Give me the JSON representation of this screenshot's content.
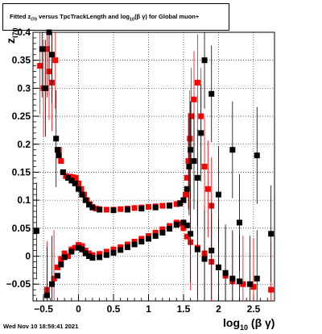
{
  "title": {
    "prefix": "Fitted  z",
    "z_subscript": "I70",
    "middle": "  versus TpcTrackLength and log",
    "log_subscript": "10",
    "suffix": "(β  γ) for Global muon+"
  },
  "timestamp": "Wed Nov 10 18:59:41 2021",
  "xlabel": {
    "main": "log",
    "sub": "10",
    "tail": "(β γ)"
  },
  "ylabel": {
    "main": "z",
    "sub": "I70"
  },
  "colors": {
    "upper_series": "#ff0000",
    "lower_series": "#000000",
    "grid": "#000000"
  },
  "chart_data": {
    "type": "scatter",
    "xlim": [
      -0.65,
      2.8
    ],
    "ylim": [
      -0.08,
      0.4
    ],
    "x_ticks": [
      -0.5,
      0,
      0.5,
      1,
      1.5,
      2,
      2.5
    ],
    "x_tick_labels": [
      "−0.5",
      "0",
      "0.5",
      "1",
      "1.5",
      "2",
      "2.5"
    ],
    "y_ticks": [
      -0.05,
      0,
      0.05,
      0.1,
      0.15,
      0.2,
      0.25,
      0.3,
      0.35,
      0.4
    ],
    "y_tick_labels": [
      "−0.05",
      "0",
      "0.05",
      "0.1",
      "0.15",
      "0.2",
      "0.25",
      "0.3",
      "0.35",
      "0.4"
    ],
    "grid": true,
    "series": [
      {
        "color": "red",
        "marker": "square",
        "points": [
          [
            -0.55,
            0.34
          ],
          [
            -0.5,
            0.3
          ],
          [
            -0.45,
            0.37
          ],
          [
            -0.42,
            0.33
          ],
          [
            -0.38,
            0.31
          ],
          [
            -0.33,
            0.35
          ],
          [
            -0.28,
            0.19
          ],
          [
            -0.25,
            0.17
          ],
          [
            -0.22,
            0.15
          ],
          [
            -0.18,
            0.143
          ],
          [
            -0.12,
            0.142
          ],
          [
            -0.08,
            0.141
          ],
          [
            -0.04,
            0.14
          ],
          [
            0.0,
            0.13
          ],
          [
            0.04,
            0.12
          ],
          [
            0.08,
            0.11
          ],
          [
            0.12,
            0.1
          ],
          [
            0.16,
            0.093
          ],
          [
            0.2,
            0.088
          ],
          [
            0.25,
            0.085
          ],
          [
            0.3,
            0.084
          ],
          [
            0.4,
            0.083
          ],
          [
            0.5,
            0.083
          ],
          [
            0.6,
            0.084
          ],
          [
            0.7,
            0.085
          ],
          [
            0.8,
            0.086
          ],
          [
            0.9,
            0.087
          ],
          [
            1.0,
            0.088
          ],
          [
            1.1,
            0.089
          ],
          [
            1.2,
            0.09
          ],
          [
            1.3,
            0.091
          ],
          [
            1.4,
            0.093
          ],
          [
            1.45,
            0.095
          ],
          [
            1.5,
            0.1
          ],
          [
            1.53,
            0.11
          ],
          [
            1.55,
            0.14
          ],
          [
            1.57,
            0.17
          ],
          [
            1.59,
            0.21
          ],
          [
            1.61,
            0.25
          ],
          [
            1.65,
            0.28
          ],
          [
            1.7,
            0.31
          ],
          [
            1.75,
            0.25
          ],
          [
            1.8,
            0.16
          ],
          [
            1.85,
            0.12
          ],
          [
            1.9,
            0.09
          ],
          [
            -0.45,
            -0.06
          ],
          [
            -0.35,
            -0.04
          ],
          [
            -0.3,
            -0.02
          ],
          [
            -0.25,
            -0.005
          ],
          [
            -0.2,
            0.005
          ],
          [
            -0.15,
            0.0
          ],
          [
            -0.1,
            0.012
          ],
          [
            -0.05,
            0.015
          ],
          [
            0.0,
            0.02
          ],
          [
            0.05,
            0.018
          ],
          [
            0.1,
            0.01
          ],
          [
            0.15,
            0.005
          ],
          [
            0.2,
            0.002
          ],
          [
            0.3,
            0.004
          ],
          [
            0.4,
            0.008
          ],
          [
            0.5,
            0.012
          ],
          [
            0.6,
            0.016
          ],
          [
            0.7,
            0.021
          ],
          [
            0.8,
            0.026
          ],
          [
            0.9,
            0.031
          ],
          [
            1.0,
            0.036
          ],
          [
            1.1,
            0.042
          ],
          [
            1.2,
            0.048
          ],
          [
            1.3,
            0.054
          ],
          [
            1.4,
            0.06
          ],
          [
            1.45,
            0.058
          ],
          [
            1.5,
            0.05
          ],
          [
            1.55,
            0.035
          ],
          [
            1.6,
            0.025
          ],
          [
            1.7,
            0.015
          ],
          [
            1.8,
            0.005
          ],
          [
            1.9,
            -0.01
          ],
          [
            2.0,
            -0.02
          ],
          [
            2.1,
            -0.035
          ],
          [
            2.2,
            -0.045
          ],
          [
            2.35,
            -0.05
          ],
          [
            2.5,
            -0.055
          ],
          [
            2.75,
            -0.06
          ]
        ]
      },
      {
        "color": "black",
        "marker": "square",
        "points": [
          [
            -0.6,
            0.045
          ],
          [
            -0.52,
            0.37
          ],
          [
            -0.47,
            0.3
          ],
          [
            -0.42,
            0.4
          ],
          [
            -0.38,
            0.36
          ],
          [
            -0.32,
            0.21
          ],
          [
            -0.3,
            0.19
          ],
          [
            -0.28,
            0.18
          ],
          [
            -0.22,
            0.15
          ],
          [
            -0.15,
            0.14
          ],
          [
            -0.1,
            0.135
          ],
          [
            -0.05,
            0.13
          ],
          [
            0.0,
            0.12
          ],
          [
            0.05,
            0.11
          ],
          [
            0.1,
            0.1
          ],
          [
            0.15,
            0.092
          ],
          [
            0.2,
            0.087
          ],
          [
            0.3,
            0.083
          ],
          [
            0.5,
            0.082
          ],
          [
            0.7,
            0.083
          ],
          [
            0.9,
            0.085
          ],
          [
            1.1,
            0.087
          ],
          [
            1.3,
            0.09
          ],
          [
            1.45,
            0.094
          ],
          [
            1.5,
            0.1
          ],
          [
            1.55,
            0.12
          ],
          [
            1.58,
            0.16
          ],
          [
            1.6,
            0.19
          ],
          [
            1.65,
            0.17
          ],
          [
            1.7,
            0.14
          ],
          [
            1.75,
            0.22
          ],
          [
            1.8,
            0.35
          ],
          [
            1.9,
            0.29
          ],
          [
            2.0,
            0.11
          ],
          [
            2.2,
            0.19
          ],
          [
            2.3,
            0.06
          ],
          [
            2.55,
            0.18
          ],
          [
            -0.45,
            -0.07
          ],
          [
            -0.38,
            -0.05
          ],
          [
            -0.3,
            -0.035
          ],
          [
            -0.25,
            -0.015
          ],
          [
            -0.2,
            -0.002
          ],
          [
            -0.1,
            0.008
          ],
          [
            0.0,
            0.015
          ],
          [
            0.05,
            0.012
          ],
          [
            0.1,
            0.005
          ],
          [
            0.15,
            0.0
          ],
          [
            0.2,
            -0.003
          ],
          [
            0.3,
            -0.002
          ],
          [
            0.4,
            0.002
          ],
          [
            0.5,
            0.006
          ],
          [
            0.6,
            0.011
          ],
          [
            0.7,
            0.016
          ],
          [
            0.8,
            0.021
          ],
          [
            0.9,
            0.026
          ],
          [
            1.0,
            0.031
          ],
          [
            1.1,
            0.036
          ],
          [
            1.2,
            0.042
          ],
          [
            1.3,
            0.049
          ],
          [
            1.4,
            0.056
          ],
          [
            1.5,
            0.06
          ],
          [
            1.55,
            0.055
          ],
          [
            1.6,
            0.04
          ],
          [
            1.7,
            0.012
          ],
          [
            1.8,
            -0.005
          ],
          [
            1.9,
            0.01
          ],
          [
            2.0,
            -0.02
          ],
          [
            2.1,
            -0.03
          ],
          [
            2.2,
            -0.04
          ],
          [
            2.3,
            -0.045
          ],
          [
            2.45,
            -0.05
          ],
          [
            2.55,
            -0.04
          ],
          [
            2.75,
            0.04
          ]
        ]
      }
    ]
  }
}
